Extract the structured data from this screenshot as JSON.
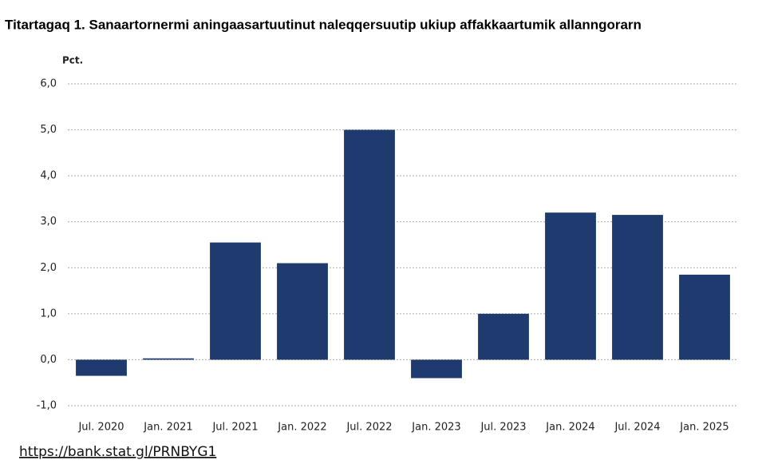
{
  "chart_data": {
    "type": "bar",
    "title": "Titartagaq 1. Sanaartornermi aningaasartuutinut naleqqersuutip ukiup affakkaartumik allanngorarn",
    "y_label": "Pct.",
    "categories": [
      "Jul. 2020",
      "Jan. 2021",
      "Jul. 2021",
      "Jan. 2022",
      "Jul. 2022",
      "Jan. 2023",
      "Jul. 2023",
      "Jan. 2024",
      "Jul. 2024",
      "Jan. 2025"
    ],
    "values": [
      -0.35,
      0.03,
      2.55,
      2.1,
      5.0,
      -0.4,
      1.0,
      3.2,
      3.15,
      1.85
    ],
    "color": "#1f3a6e",
    "ylim": [
      -1,
      6
    ],
    "yticks": [
      {
        "value": -1,
        "label": "-1,0"
      },
      {
        "value": 0,
        "label": "0,0"
      },
      {
        "value": 1,
        "label": "1,0"
      },
      {
        "value": 2,
        "label": "2,0"
      },
      {
        "value": 3,
        "label": "3,0"
      },
      {
        "value": 4,
        "label": "4,0"
      },
      {
        "value": 5,
        "label": "5,0"
      },
      {
        "value": 6,
        "label": "6,0"
      }
    ],
    "grid": true,
    "source": "https://bank.stat.gl/PRNBYG1"
  }
}
